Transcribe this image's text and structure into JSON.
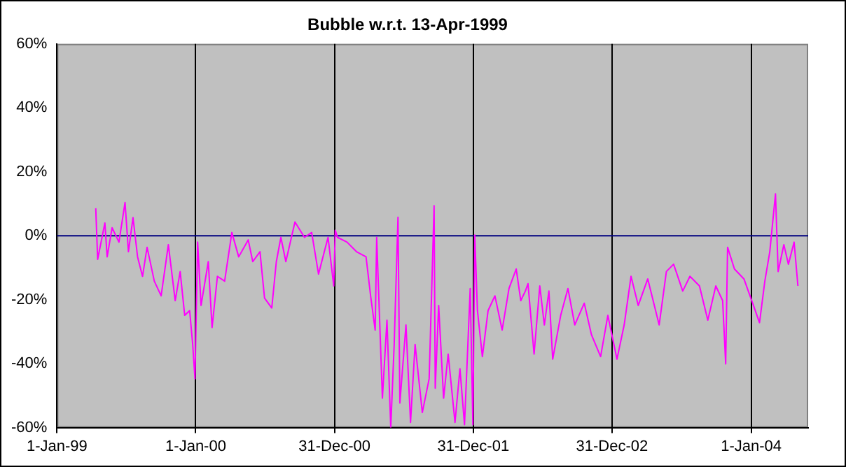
{
  "chart_data": {
    "type": "line",
    "title": "Bubble w.r.t. 13-Apr-1999",
    "grid": "x",
    "marker": "none",
    "xlim": [
      "1999-01-01",
      "2004-05-30"
    ],
    "xticks": [
      {
        "value": "1999-01-01",
        "label": "1-Jan-99"
      },
      {
        "value": "2000-01-01",
        "label": "1-Jan-00"
      },
      {
        "value": "2000-12-31",
        "label": "31-Dec-00"
      },
      {
        "value": "2001-12-31",
        "label": "31-Dec-01"
      },
      {
        "value": "2002-12-31",
        "label": "31-Dec-02"
      },
      {
        "value": "2004-01-01",
        "label": "1-Jan-04"
      }
    ],
    "ylim": [
      -60,
      60
    ],
    "yticks": [
      {
        "value": -60,
        "label": "-60%"
      },
      {
        "value": -40,
        "label": "-40%"
      },
      {
        "value": -20,
        "label": "-20%"
      },
      {
        "value": 0,
        "label": "0%"
      },
      {
        "value": 20,
        "label": "20%"
      },
      {
        "value": 40,
        "label": "40%"
      },
      {
        "value": 60,
        "label": "60%"
      }
    ],
    "ref_lines": [
      {
        "axis": "y",
        "value": 0,
        "color": "#000080"
      }
    ],
    "x": [
      "1999-04-13",
      "1999-04-18",
      "1999-05-07",
      "1999-05-13",
      "1999-05-26",
      "1999-06-13",
      "1999-06-29",
      "1999-07-08",
      "1999-07-20",
      "1999-08-01",
      "1999-08-14",
      "1999-08-26",
      "1999-09-14",
      "1999-10-02",
      "1999-10-21",
      "1999-11-08",
      "1999-11-21",
      "1999-12-03",
      "1999-12-16",
      "1999-12-24",
      "1999-12-30",
      "2000-01-06",
      "2000-01-15",
      "2000-02-03",
      "2000-02-13",
      "2000-02-27",
      "2000-03-17",
      "2000-04-05",
      "2000-04-23",
      "2000-05-18",
      "2000-05-30",
      "2000-06-18",
      "2000-06-30",
      "2000-07-19",
      "2000-07-31",
      "2000-08-12",
      "2000-08-25",
      "2000-09-18",
      "2000-10-13",
      "2000-11-01",
      "2000-11-19",
      "2000-12-14",
      "2000-12-29",
      "2001-01-02",
      "2001-01-08",
      "2001-02-02",
      "2001-02-27",
      "2001-03-24",
      "2001-04-05",
      "2001-04-17",
      "2001-04-21",
      "2001-05-06",
      "2001-05-18",
      "2001-05-28",
      "2001-06-06",
      "2001-06-16",
      "2001-06-21",
      "2001-07-07",
      "2001-07-19",
      "2001-07-31",
      "2001-08-19",
      "2001-09-06",
      "2001-09-19",
      "2001-09-22",
      "2001-10-01",
      "2001-10-14",
      "2001-10-26",
      "2001-11-13",
      "2001-11-26",
      "2001-12-08",
      "2001-12-23",
      "2001-12-30",
      "2002-01-04",
      "2002-01-11",
      "2002-01-24",
      "2002-02-08",
      "2002-02-26",
      "2002-03-17",
      "2002-04-04",
      "2002-04-23",
      "2002-05-05",
      "2002-05-17",
      "2002-05-24",
      "2002-06-09",
      "2002-06-24",
      "2002-07-06",
      "2002-07-18",
      "2002-07-28",
      "2002-08-18",
      "2002-09-06",
      "2002-09-24",
      "2002-10-19",
      "2002-11-07",
      "2002-12-01",
      "2002-12-20",
      "2003-01-13",
      "2003-02-01",
      "2003-02-19",
      "2003-03-10",
      "2003-04-04",
      "2003-05-04",
      "2003-05-23",
      "2003-06-11",
      "2003-07-05",
      "2003-07-24",
      "2003-08-18",
      "2003-09-09",
      "2003-09-30",
      "2003-10-18",
      "2003-10-26",
      "2003-10-31",
      "2003-11-18",
      "2003-12-13",
      "2004-01-07",
      "2004-01-23",
      "2004-02-06",
      "2004-02-19",
      "2004-03-05",
      "2004-03-12",
      "2004-03-27",
      "2004-04-08",
      "2004-04-23",
      "2004-05-03"
    ],
    "series": [
      {
        "color": "#ff00ff",
        "values": [
          8.6,
          -7.4,
          4,
          -6.6,
          2.5,
          -2,
          10.4,
          -5,
          5.7,
          -6.6,
          -12.7,
          -3.6,
          -14.2,
          -18.8,
          -2.8,
          -20.3,
          -11.2,
          -24.9,
          -23.4,
          -34,
          -44.7,
          -2,
          -21.8,
          -8.1,
          -28.7,
          -12.7,
          -14.2,
          1,
          -6.6,
          -1.3,
          -8.1,
          -5,
          -19.5,
          -22.6,
          -8.1,
          -0.5,
          -8.1,
          4.3,
          -0.5,
          1,
          -12,
          -0.5,
          -15.7,
          1.7,
          -0.5,
          -2,
          -5,
          -6.6,
          -18.8,
          -29.5,
          -0.5,
          -50.8,
          -26.4,
          -60,
          -34,
          5.8,
          -52.3,
          -27.9,
          -58.4,
          -34,
          -55.3,
          -44.7,
          9.4,
          -47.7,
          -21.8,
          -50.8,
          -37,
          -58.4,
          -41.6,
          -59.1,
          -16.5,
          -59.1,
          0.2,
          -23.4,
          -37.8,
          -23.4,
          -18.8,
          -29.5,
          -16.5,
          -10.4,
          -20.3,
          -17.3,
          -15,
          -37,
          -15.7,
          -27.9,
          -17.3,
          -38.6,
          -24.9,
          -16.5,
          -27.9,
          -21.1,
          -31,
          -37.8,
          -24.9,
          -38.6,
          -27.9,
          -12.7,
          -21.8,
          -13.5,
          -27.9,
          -11.2,
          -8.9,
          -17.3,
          -12.7,
          -15.7,
          -26.4,
          -15.7,
          -20.3,
          -40.1,
          -3.6,
          -10.4,
          -13.5,
          -21.8,
          -27.2,
          -14.2,
          -5,
          13.1,
          -11.2,
          -2.8,
          -8.9,
          -2,
          -15.7
        ]
      }
    ]
  }
}
